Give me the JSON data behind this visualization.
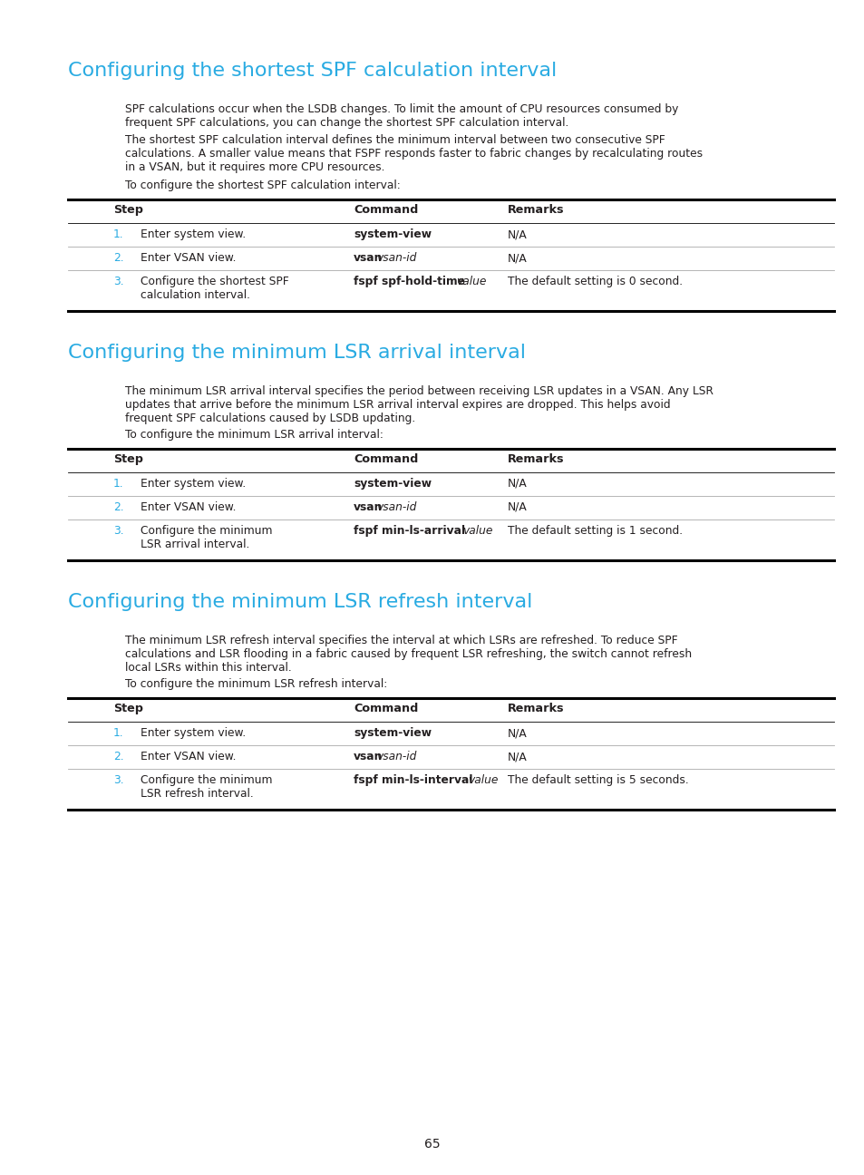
{
  "bg_color": "#ffffff",
  "text_color": "#231f20",
  "cyan_color": "#29abe2",
  "page_number": "65",
  "section1": {
    "title": "Configuring the shortest SPF calculation interval",
    "para1": "SPF calculations occur when the LSDB changes. To limit the amount of CPU resources consumed by\nfrequent SPF calculations, you can change the shortest SPF calculation interval.",
    "para2": "The shortest SPF calculation interval defines the minimum interval between two consecutive SPF\ncalculations. A smaller value means that FSPF responds faster to fabric changes by recalculating routes\nin a VSAN, but it requires more CPU resources.",
    "para3": "To configure the shortest SPF calculation interval:",
    "table": {
      "rows": [
        [
          "1.",
          "Enter system view.",
          "system-view",
          "N/A"
        ],
        [
          "2.",
          "Enter VSAN view.",
          "vsan|vsan-id",
          "N/A"
        ],
        [
          "3.",
          "Configure the shortest SPF\ncalculation interval.",
          "fspf spf-hold-time|value",
          "The default setting is 0 second."
        ]
      ]
    }
  },
  "section2": {
    "title": "Configuring the minimum LSR arrival interval",
    "para1": "The minimum LSR arrival interval specifies the period between receiving LSR updates in a VSAN. Any LSR\nupdates that arrive before the minimum LSR arrival interval expires are dropped. This helps avoid\nfrequent SPF calculations caused by LSDB updating.",
    "para2": "To configure the minimum LSR arrival interval:",
    "table": {
      "rows": [
        [
          "1.",
          "Enter system view.",
          "system-view",
          "N/A"
        ],
        [
          "2.",
          "Enter VSAN view.",
          "vsan|vsan-id",
          "N/A"
        ],
        [
          "3.",
          "Configure the minimum\nLSR arrival interval.",
          "fspf min-ls-arrival|value",
          "The default setting is 1 second."
        ]
      ]
    }
  },
  "section3": {
    "title": "Configuring the minimum LSR refresh interval",
    "para1": "The minimum LSR refresh interval specifies the interval at which LSRs are refreshed. To reduce SPF\ncalculations and LSR flooding in a fabric caused by frequent LSR refreshing, the switch cannot refresh\nlocal LSRs within this interval.",
    "para2": "To configure the minimum LSR refresh interval:",
    "table": {
      "rows": [
        [
          "1.",
          "Enter system view.",
          "system-view",
          "N/A"
        ],
        [
          "2.",
          "Enter VSAN view.",
          "vsan|vsan-id",
          "N/A"
        ],
        [
          "3.",
          "Configure the minimum\nLSR refresh interval.",
          "fspf min-ls-interval|value",
          "The default setting is 5 seconds."
        ]
      ]
    }
  }
}
